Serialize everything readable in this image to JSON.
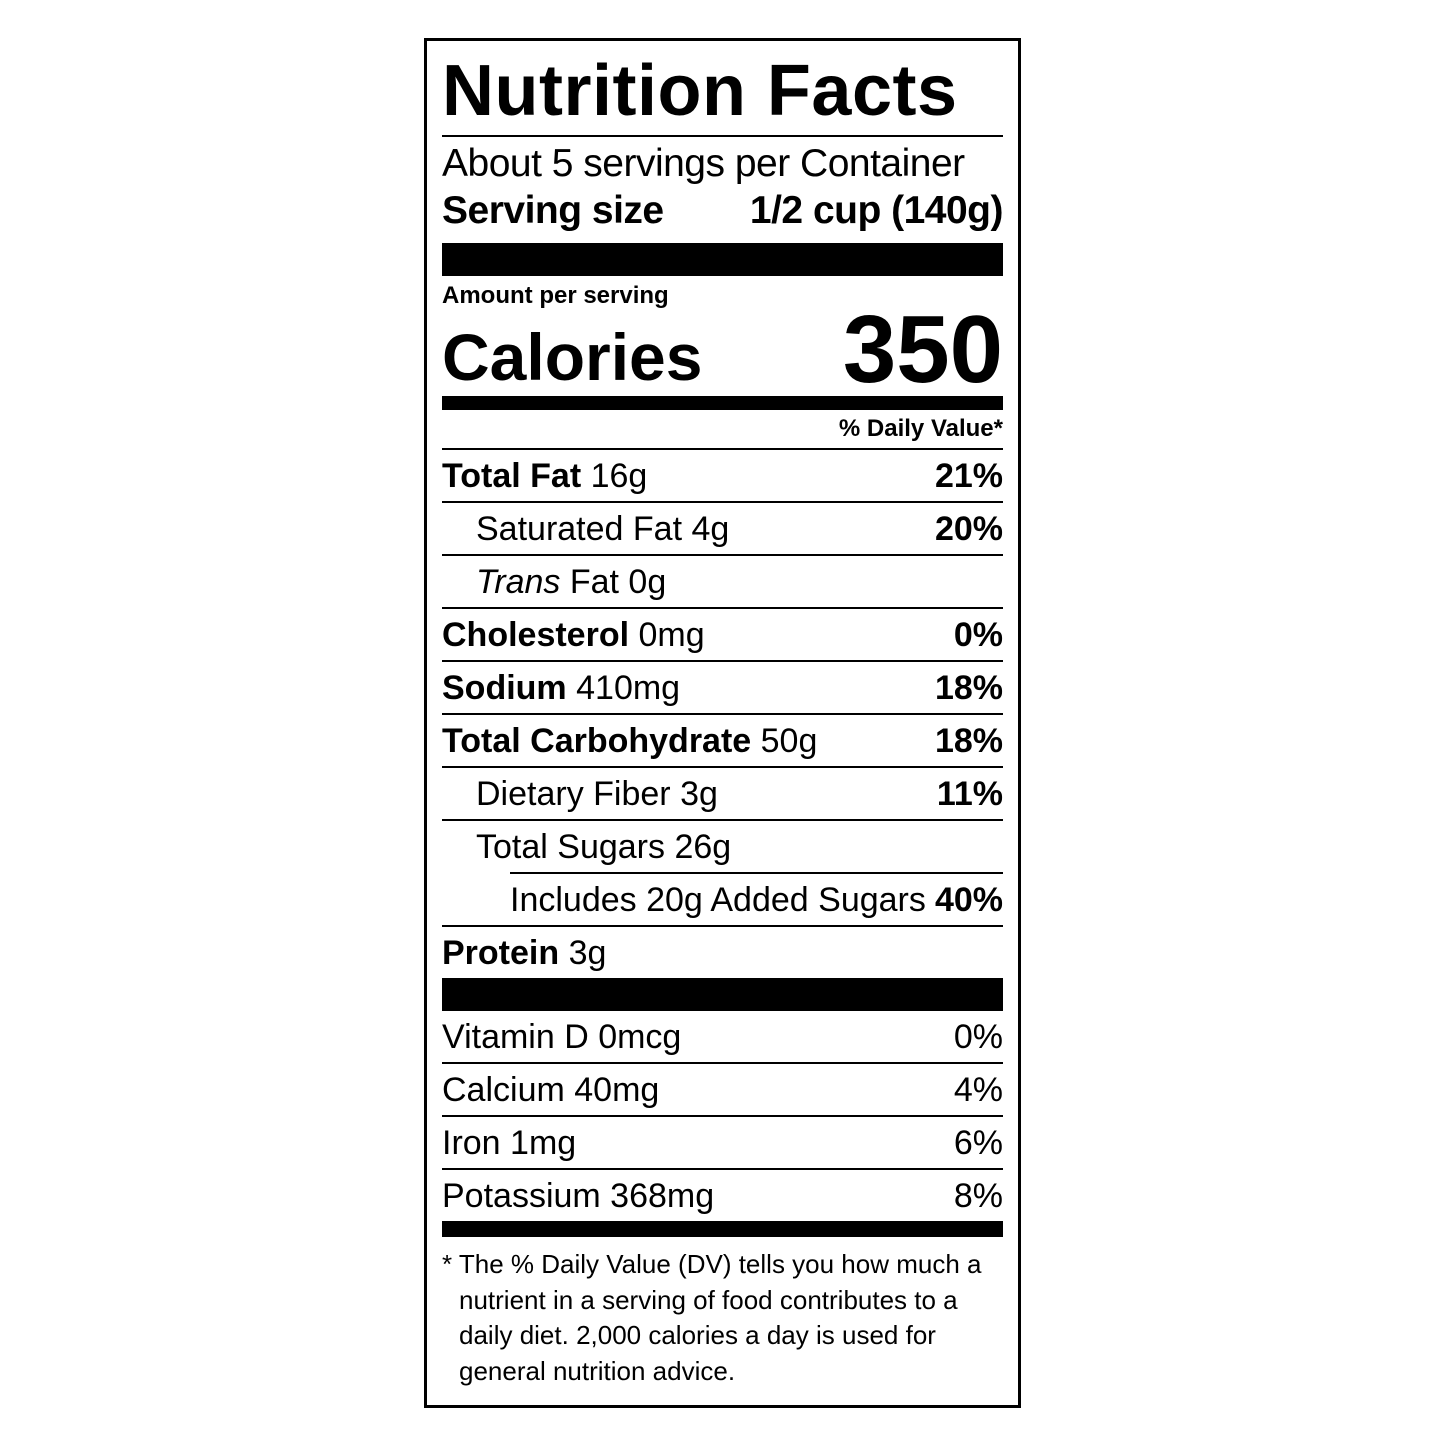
{
  "title": "Nutrition Facts",
  "servings_per_container": "About 5 servings per Container",
  "serving_size": {
    "label": "Serving size",
    "value": "1/2 cup (140g)"
  },
  "amount_per_serving": "Amount per serving",
  "calories": {
    "label": "Calories",
    "value": "350"
  },
  "daily_value_header": "% Daily Value*",
  "nutrients": [
    {
      "name": "Total Fat",
      "amount": "16g",
      "dv": "21%"
    },
    {
      "name": "Saturated Fat",
      "amount": "4g",
      "dv": "20%"
    },
    {
      "name_italic": "Trans",
      "name": "Fat",
      "amount": "0g",
      "dv": ""
    },
    {
      "name": "Cholesterol",
      "amount": "0mg",
      "dv": "0%"
    },
    {
      "name": "Sodium",
      "amount": "410mg",
      "dv": "18%"
    },
    {
      "name": "Total Carbohydrate",
      "amount": "50g",
      "dv": "18%"
    },
    {
      "name": "Dietary Fiber",
      "amount": "3g",
      "dv": "11%"
    },
    {
      "name": "Total Sugars",
      "amount": "26g",
      "dv": ""
    },
    {
      "name": "Includes 20g Added Sugars",
      "amount": "",
      "dv": "40%"
    },
    {
      "name": "Protein",
      "amount": "3g",
      "dv": ""
    }
  ],
  "vitamins": [
    {
      "name": "Vitamin D 0mcg",
      "dv": "0%"
    },
    {
      "name": "Calcium 40mg",
      "dv": "4%"
    },
    {
      "name": "Iron 1mg",
      "dv": "6%"
    },
    {
      "name": "Potassium 368mg",
      "dv": "8%"
    }
  ],
  "footnote": "* The % Daily Value (DV) tells you how much a nutrient in a serving of food contributes to a daily diet. 2,000 calories a day is used for general nutrition advice."
}
